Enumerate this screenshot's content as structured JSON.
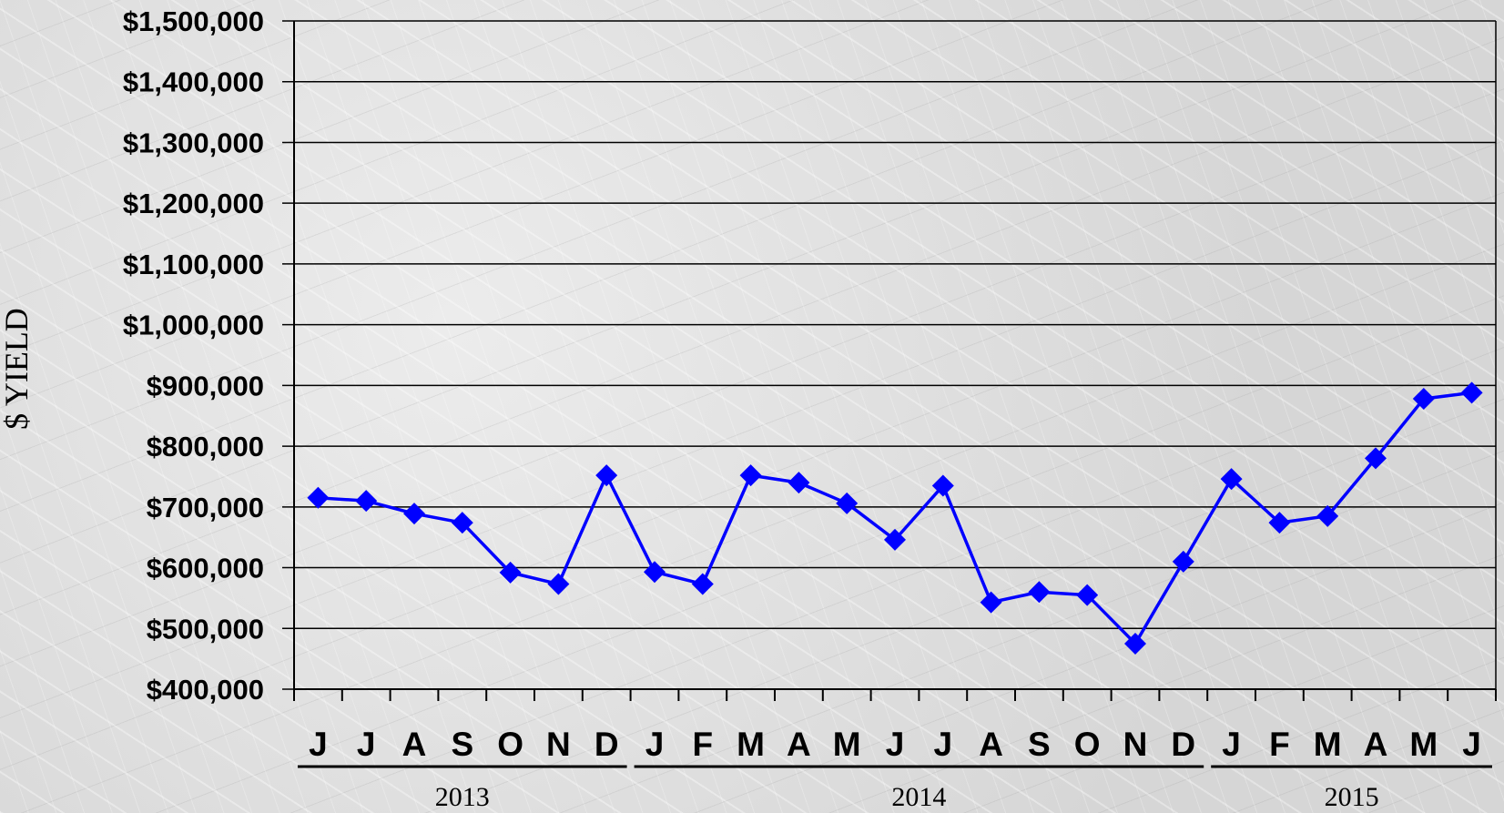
{
  "chart_data": {
    "type": "line",
    "ylabel": "$ YIELD",
    "ylim": [
      400000,
      1500000
    ],
    "y_ticks": [
      "$1,500,000",
      "$1,400,000",
      "$1,300,000",
      "$1,200,000",
      "$1,100,000",
      "$1,000,000",
      "$900,000",
      "$800,000",
      "$700,000",
      "$600,000",
      "$500,000",
      "$400,000"
    ],
    "categories": [
      "J",
      "J",
      "A",
      "S",
      "O",
      "N",
      "D",
      "J",
      "F",
      "M",
      "A",
      "M",
      "J",
      "J",
      "A",
      "S",
      "O",
      "N",
      "D",
      "J",
      "F",
      "M",
      "A",
      "M",
      "J"
    ],
    "year_groups": [
      {
        "label": "2013",
        "start": 0,
        "end": 6
      },
      {
        "label": "2014",
        "start": 7,
        "end": 18
      },
      {
        "label": "2015",
        "start": 19,
        "end": 24
      }
    ],
    "series": [
      {
        "color": "#0000ff",
        "marker": "diamond",
        "values": [
          715000,
          710000,
          689000,
          674000,
          592000,
          573000,
          752000,
          593000,
          573000,
          752000,
          740000,
          706000,
          646000,
          735000,
          543000,
          560000,
          555000,
          475000,
          610000,
          746000,
          674000,
          685000,
          780000,
          878000,
          888000
        ]
      }
    ],
    "grid": true,
    "legend": "none"
  }
}
